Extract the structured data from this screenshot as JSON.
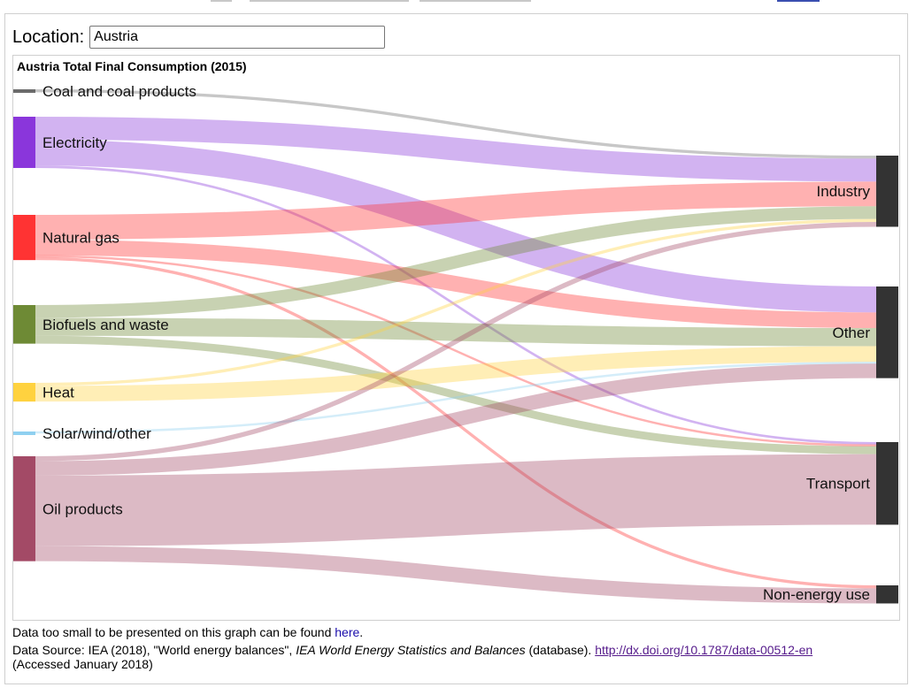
{
  "location": {
    "label": "Location:",
    "value": "Austria"
  },
  "chart_data": {
    "type": "sankey",
    "title": "Austria Total Final Consumption (2015)",
    "sources": [
      {
        "name": "Coal and coal products",
        "color": "#6b6b6b"
      },
      {
        "name": "Electricity",
        "color": "#8a36db"
      },
      {
        "name": "Natural gas",
        "color": "#ff3333"
      },
      {
        "name": "Biofuels and waste",
        "color": "#6e8a35"
      },
      {
        "name": "Heat",
        "color": "#ffd23f"
      },
      {
        "name": "Solar/wind/other",
        "color": "#8fd0f0"
      },
      {
        "name": "Oil products",
        "color": "#a34a66"
      }
    ],
    "targets": [
      {
        "name": "Industry",
        "color": "#333333"
      },
      {
        "name": "Other",
        "color": "#333333"
      },
      {
        "name": "Transport",
        "color": "#333333"
      },
      {
        "name": "Non-energy use",
        "color": "#333333"
      }
    ],
    "flows": [
      {
        "from": "Coal and coal products",
        "to": "Industry",
        "value": 5
      },
      {
        "from": "Electricity",
        "to": "Industry",
        "value": 38
      },
      {
        "from": "Electricity",
        "to": "Other",
        "value": 43
      },
      {
        "from": "Electricity",
        "to": "Transport",
        "value": 4
      },
      {
        "from": "Natural gas",
        "to": "Industry",
        "value": 41
      },
      {
        "from": "Natural gas",
        "to": "Other",
        "value": 26
      },
      {
        "from": "Natural gas",
        "to": "Transport",
        "value": 3
      },
      {
        "from": "Natural gas",
        "to": "Non-energy use",
        "value": 5
      },
      {
        "from": "Biofuels and waste",
        "to": "Industry",
        "value": 21
      },
      {
        "from": "Biofuels and waste",
        "to": "Other",
        "value": 30
      },
      {
        "from": "Biofuels and waste",
        "to": "Transport",
        "value": 13
      },
      {
        "from": "Heat",
        "to": "Industry",
        "value": 5
      },
      {
        "from": "Heat",
        "to": "Other",
        "value": 26
      },
      {
        "from": "Solar/wind/other",
        "to": "Other",
        "value": 3
      },
      {
        "from": "Oil products",
        "to": "Industry",
        "value": 8
      },
      {
        "from": "Oil products",
        "to": "Other",
        "value": 24
      },
      {
        "from": "Oil products",
        "to": "Transport",
        "value": 117
      },
      {
        "from": "Oil products",
        "to": "Non-energy use",
        "value": 25
      }
    ]
  },
  "footer": {
    "note_text": "Data too small to be presented on this graph can be found ",
    "note_link": "here",
    "note_end": ".",
    "source_prefix": "Data Source: IEA (2018), \"World energy balances\", ",
    "source_italic": "IEA World Energy Statistics and Balances",
    "source_mid": " (database). ",
    "source_link": "http://dx.doi.org/10.1787/data-00512-en",
    "accessed": "(Accessed January 2018)"
  }
}
